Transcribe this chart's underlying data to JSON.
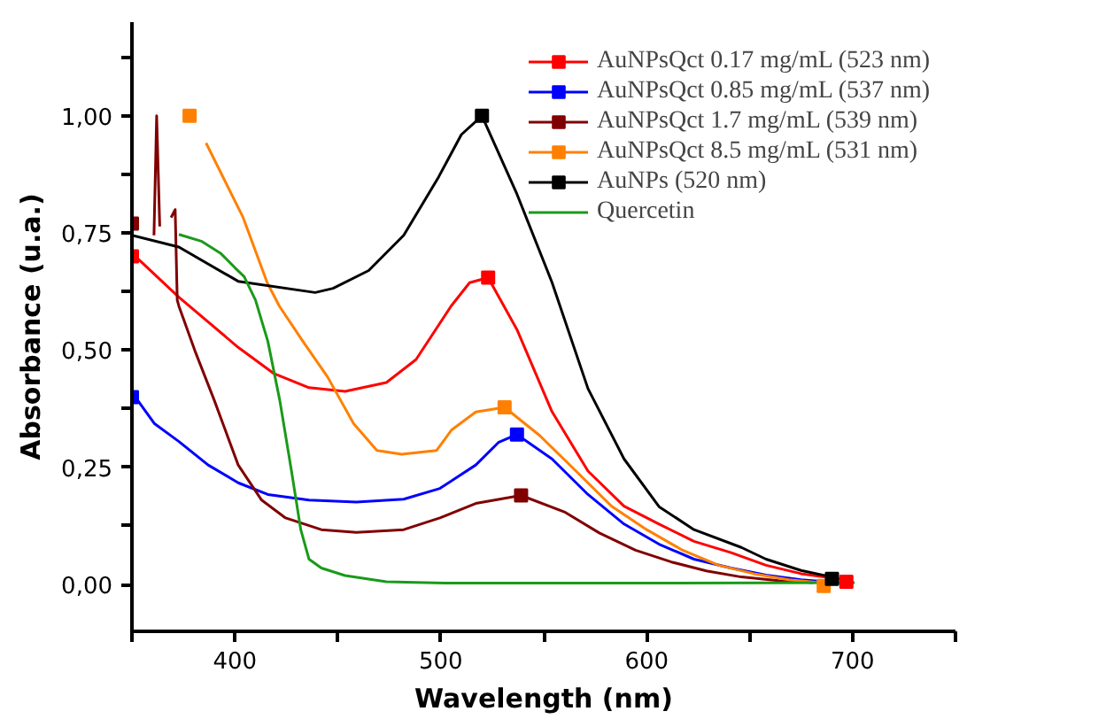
{
  "chart_data": {
    "type": "line",
    "xlabel": "Wavelength (nm)",
    "ylabel": "Absorbance (u.a.)",
    "xlim": [
      350,
      750
    ],
    "ylim": [
      -0.1,
      1.2
    ],
    "xticks": [
      {
        "value": 350,
        "label": null
      },
      400,
      {
        "value": 450,
        "label": null
      },
      500,
      {
        "value": 550,
        "label": null
      },
      600,
      {
        "value": 650,
        "label": null
      },
      700,
      {
        "value": 750,
        "label": null
      }
    ],
    "yticks": [
      {
        "value": 0,
        "label": "0,00"
      },
      {
        "value": 0.125,
        "label": null
      },
      {
        "value": 0.25,
        "label": "0,25"
      },
      {
        "value": 0.375,
        "label": null
      },
      {
        "value": 0.5,
        "label": "0,50"
      },
      {
        "value": 0.625,
        "label": null
      },
      {
        "value": 0.75,
        "label": "0,75"
      },
      {
        "value": 0.875,
        "label": null
      },
      {
        "value": 1,
        "label": "1,00"
      },
      {
        "value": 1.125,
        "label": null
      }
    ],
    "grid": false,
    "legend": "top right",
    "line_style": "solid",
    "series": [
      {
        "name": "AuNPsQct 0.17 mg/mL (523 nm)",
        "color": "#ff0000",
        "x": [
          350,
          372.8,
          401.6,
          419,
          436,
          453.5,
          473.6,
          488,
          505,
          514,
          523,
          537,
          554,
          571.5,
          589,
          606,
          623,
          641,
          658,
          675,
          695
        ],
        "values": [
          0.707,
          0.613,
          0.506,
          0.45,
          0.42,
          0.412,
          0.431,
          0.48,
          0.594,
          0.644,
          0.655,
          0.544,
          0.369,
          0.242,
          0.167,
          0.129,
          0.092,
          0.068,
          0.041,
          0.023,
          0.011
        ]
      },
      {
        "name": "AuNPsQct 0.85 mg/mL (537 nm)",
        "color": "#0000ff",
        "x": [
          350,
          361,
          372.8,
          387,
          401.6,
          416,
          436,
          459,
          482,
          499.6,
          517,
          528,
          537,
          554,
          571.5,
          589,
          606,
          623,
          641,
          658,
          675,
          687
        ],
        "values": [
          0.41,
          0.343,
          0.305,
          0.255,
          0.217,
          0.192,
          0.18,
          0.176,
          0.182,
          0.205,
          0.255,
          0.303,
          0.32,
          0.268,
          0.192,
          0.129,
          0.086,
          0.054,
          0.035,
          0.02,
          0.01,
          0.006
        ]
      },
      {
        "name": "AuNPsQct 1.7 mg/mL (539 nm)",
        "color": "#800000",
        "x": [
          360.7,
          362,
          363.5,
          366,
          369,
          371,
          372,
          372.8,
          381,
          390,
          401.6,
          413,
          424.6,
          442,
          459,
          482,
          499.6,
          517,
          539,
          560,
          577,
          594.6,
          612,
          629,
          646,
          664,
          681
        ],
        "values": [
          0.745,
          1.0,
          0.764,
          null,
          0.783,
          0.8,
          0.607,
          0.594,
          0.494,
          0.393,
          0.255,
          0.18,
          0.142,
          0.117,
          0.111,
          0.117,
          0.142,
          0.173,
          0.19,
          0.155,
          0.11,
          0.073,
          0.048,
          0.029,
          0.016,
          0.008,
          0.004
        ]
      },
      {
        "name": "AuNPsQct 8.5 mg/mL (531 nm)",
        "color": "#ff8000",
        "x": [
          386,
          404,
          415.7,
          421.6,
          433,
          445,
          457.7,
          469,
          481,
          498,
          505.3,
          517,
          531,
          548,
          565.7,
          583,
          600,
          617.5,
          635,
          652,
          669,
          684
        ],
        "values": [
          0.942,
          0.783,
          0.644,
          0.594,
          0.519,
          0.443,
          0.343,
          0.286,
          0.278,
          0.286,
          0.33,
          0.368,
          0.378,
          0.318,
          0.242,
          0.167,
          0.117,
          0.073,
          0.041,
          0.023,
          0.01,
          0.004
        ]
      },
      {
        "name": "AuNPs (520 nm)",
        "color": "#000000",
        "x": [
          350,
          372.8,
          401.6,
          439,
          447.7,
          465,
          482,
          499,
          510,
          520,
          537,
          554,
          571.5,
          589,
          606,
          623,
          646,
          658,
          675,
          691
        ],
        "values": [
          0.745,
          0.72,
          0.647,
          0.623,
          0.632,
          0.67,
          0.745,
          0.87,
          0.96,
          1.0,
          0.833,
          0.645,
          0.418,
          0.268,
          0.166,
          0.117,
          0.079,
          0.054,
          0.03,
          0.015
        ]
      },
      {
        "name": "Quercetin",
        "color": "#1a9a1a",
        "x": [
          372.8,
          384,
          393,
          400,
          404.5,
          410,
          416,
          421.8,
          427.5,
          432,
          436,
          442,
          453.5,
          473.6,
          502,
          600,
          701
        ],
        "values": [
          0.747,
          0.732,
          0.707,
          0.676,
          0.657,
          0.607,
          0.519,
          0.393,
          0.242,
          0.117,
          0.054,
          0.035,
          0.019,
          0.006,
          0.003,
          0.003,
          0.004
        ]
      },
      {
        "type": "scatter",
        "marker": "square",
        "color": "#ff0000",
        "x": [
          350,
          523,
          697
        ],
        "values": [
          0.7,
          0.655,
          0.006
        ]
      },
      {
        "type": "scatter",
        "marker": "square",
        "color": "#0000ff",
        "x": [
          350,
          537
        ],
        "values": [
          0.4,
          0.32
        ]
      },
      {
        "type": "scatter",
        "marker": "square",
        "color": "#800000",
        "x": [
          350,
          539
        ],
        "values": [
          0.77,
          0.19
        ]
      },
      {
        "type": "scatter",
        "marker": "square",
        "color": "#ff8000",
        "x": [
          378,
          531,
          686
        ],
        "values": [
          1.0,
          0.378,
          -0.003
        ]
      },
      {
        "type": "scatter",
        "marker": "square",
        "color": "#000000",
        "x": [
          520,
          690
        ],
        "values": [
          1.0,
          0.012
        ]
      }
    ]
  }
}
